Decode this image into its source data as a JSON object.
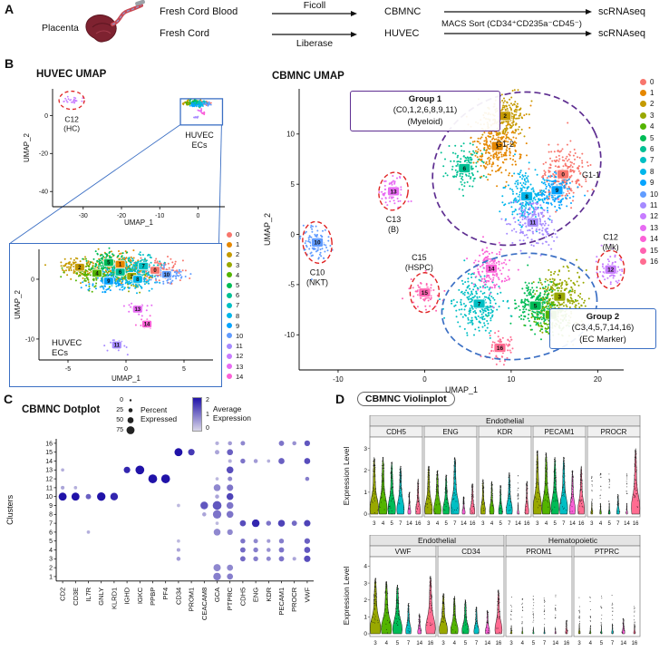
{
  "palette": [
    "#F8766D",
    "#E58700",
    "#C49A00",
    "#99A800",
    "#53B400",
    "#00BC56",
    "#00C094",
    "#00BFC4",
    "#00B6EB",
    "#06A4FF",
    "#619CFF",
    "#A58AFF",
    "#C77CFF",
    "#E76BF3",
    "#FB61D7",
    "#FF62B0",
    "#FF6C91"
  ],
  "panelA": {
    "label": "A",
    "placenta": "Placenta",
    "fresh_cord_blood": "Fresh Cord Blood",
    "fresh_cord": "Fresh Cord",
    "ficoll": "Ficoll",
    "liberase": "Liberase",
    "cbmnc": "CBMNC",
    "huvec": "HUVEC",
    "macs": "MACS Sort (CD34⁺CD235a⁻CD45⁻)",
    "scrnaseq1": "scRNAseq",
    "scrnaseq2": "scRNAseq"
  },
  "panelB": {
    "label": "B",
    "huvec_title": "HUVEC UMAP",
    "cbmnc_title": "CBMNC UMAP",
    "c12_hc": [
      "C12",
      "(HC)"
    ],
    "huvec_ecs": [
      "HUVEC",
      "ECs"
    ],
    "group1_box": [
      "Group 1",
      "(C0,1,2,6,8,9,11)",
      "(Myeloid)"
    ],
    "group2_box": [
      "Group 2",
      "(C3,4,5,7,14,16)",
      "(EC Marker)"
    ],
    "g12": "G1-2",
    "g11": "G1-1",
    "c13": [
      "C13",
      "(B)"
    ],
    "c10": [
      "C10",
      "(NKT)"
    ],
    "c15": [
      "C15",
      "(HSPC)"
    ],
    "c12mk": [
      "C12",
      "(Mk)"
    ]
  },
  "panelC": {
    "label": "C"
  },
  "panelD": {
    "label": "D"
  },
  "chart_data": {
    "huvec_umap": {
      "type": "scatter",
      "title": "HUVEC UMAP",
      "xlabel": "UMAP_1",
      "ylabel": "UMAP_2",
      "xlim": [
        -38,
        7
      ],
      "ylim": [
        -48,
        14
      ],
      "xticks": [
        -30,
        -20,
        -10,
        0
      ],
      "yticks": [
        0,
        -20,
        -40
      ],
      "clusters": [
        {
          "id": 0,
          "x": 1.75,
          "y": 6.5,
          "sd": 0.55,
          "n": 30
        },
        {
          "id": 1,
          "x": -0.35,
          "y": 7.1,
          "sd": 0.55,
          "n": 30
        },
        {
          "id": 2,
          "x": -2.8,
          "y": 6.8,
          "sd": 0.55,
          "n": 28
        },
        {
          "id": 3,
          "x": 0.35,
          "y": 5.9,
          "sd": 0.55,
          "n": 28
        },
        {
          "id": 4,
          "x": -1.75,
          "y": 6.2,
          "sd": 0.55,
          "n": 30
        },
        {
          "id": 5,
          "x": -1.05,
          "y": 7.28,
          "sd": 0.5,
          "n": 26
        },
        {
          "id": 6,
          "x": -0.35,
          "y": 6.32,
          "sd": 0.5,
          "n": 24
        },
        {
          "id": 7,
          "x": 1.05,
          "y": 6.92,
          "sd": 0.5,
          "n": 26
        },
        {
          "id": 8,
          "x": 0.7,
          "y": 5.6,
          "sd": 0.5,
          "n": 24
        },
        {
          "id": 9,
          "x": -1.05,
          "y": 5.42,
          "sd": 0.5,
          "n": 22
        },
        {
          "id": 10,
          "x": 2.45,
          "y": 6.08,
          "sd": 0.5,
          "n": 20
        },
        {
          "id": 11,
          "x": -0.56,
          "y": -1.0,
          "sd": 0.35,
          "n": 10
        },
        {
          "id": 13,
          "x": 0.7,
          "y": 2.6,
          "sd": 0.35,
          "n": 10
        },
        {
          "id": 14,
          "x": 1.26,
          "y": 1.1,
          "sd": 0.3,
          "n": 8
        },
        {
          "id": 12,
          "x": -33,
          "y": 8,
          "sd": 1.1,
          "n": 26
        }
      ]
    },
    "huvec_zoom": {
      "type": "scatter",
      "xlabel": "UMAP_1",
      "ylabel": "UMAP_2",
      "xlim": [
        -7.5,
        7.5
      ],
      "ylim": [
        -13.5,
        5
      ],
      "xticks": [
        -5,
        0,
        5
      ],
      "yticks": [
        0,
        -10
      ],
      "legend_ids": [
        0,
        1,
        2,
        3,
        4,
        5,
        6,
        7,
        8,
        9,
        10,
        11,
        12,
        13,
        14
      ],
      "clusters": [
        {
          "id": 0,
          "x": 2.5,
          "y": 1.5,
          "sd": 1.0,
          "n": 130
        },
        {
          "id": 1,
          "x": -0.5,
          "y": 2.5,
          "sd": 1.0,
          "n": 140
        },
        {
          "id": 2,
          "x": -4,
          "y": 2,
          "sd": 0.9,
          "n": 120
        },
        {
          "id": 3,
          "x": 0.5,
          "y": 0.5,
          "sd": 0.9,
          "n": 120
        },
        {
          "id": 4,
          "x": -2.5,
          "y": 1,
          "sd": 1.0,
          "n": 130
        },
        {
          "id": 5,
          "x": -1.5,
          "y": 2.8,
          "sd": 0.9,
          "n": 110
        },
        {
          "id": 6,
          "x": -0.5,
          "y": 1.2,
          "sd": 0.8,
          "n": 100
        },
        {
          "id": 7,
          "x": 1.5,
          "y": 2.2,
          "sd": 0.9,
          "n": 110
        },
        {
          "id": 8,
          "x": 1,
          "y": 0,
          "sd": 0.9,
          "n": 100
        },
        {
          "id": 9,
          "x": -1.5,
          "y": -0.3,
          "sd": 0.8,
          "n": 90
        },
        {
          "id": 10,
          "x": 3.5,
          "y": 0.8,
          "sd": 0.8,
          "n": 80
        },
        {
          "id": 11,
          "x": -0.8,
          "y": -11,
          "sd": 0.5,
          "n": 22
        },
        {
          "id": 13,
          "x": 1,
          "y": -5,
          "sd": 0.5,
          "n": 26
        },
        {
          "id": 14,
          "x": 1.8,
          "y": -7.5,
          "sd": 0.45,
          "n": 18
        }
      ]
    },
    "cbmnc_umap": {
      "type": "scatter",
      "title": "CBMNC UMAP",
      "xlabel": "UMAP_1",
      "ylabel": "UMAP_2",
      "xlim": [
        -14.5,
        23
      ],
      "ylim": [
        -13.5,
        14.5
      ],
      "xticks": [
        -10,
        0,
        10,
        20
      ],
      "yticks": [
        -10,
        -5,
        0,
        5,
        10
      ],
      "legend_ids": [
        0,
        1,
        2,
        3,
        4,
        5,
        6,
        7,
        8,
        9,
        10,
        11,
        12,
        13,
        14,
        15,
        16
      ],
      "clusters": [
        {
          "id": 0,
          "x": 16,
          "y": 6,
          "sd": 1.3,
          "n": 240
        },
        {
          "id": 1,
          "x": 8.4,
          "y": 8.8,
          "sd": 1.5,
          "n": 300
        },
        {
          "id": 2,
          "x": 9.3,
          "y": 11.8,
          "sd": 1.1,
          "n": 200
        },
        {
          "id": 3,
          "x": 15.6,
          "y": -6.2,
          "sd": 1.4,
          "n": 260
        },
        {
          "id": 4,
          "x": 14.6,
          "y": -8,
          "sd": 1.0,
          "n": 170
        },
        {
          "id": 5,
          "x": 12.8,
          "y": -7.1,
          "sd": 1.2,
          "n": 210
        },
        {
          "id": 6,
          "x": 4.6,
          "y": 6.6,
          "sd": 1.0,
          "n": 140
        },
        {
          "id": 7,
          "x": 6.3,
          "y": -6.9,
          "sd": 1.4,
          "n": 250
        },
        {
          "id": 8,
          "x": 11.8,
          "y": 3.8,
          "sd": 1.2,
          "n": 210
        },
        {
          "id": 9,
          "x": 15.3,
          "y": 4.4,
          "sd": 0.9,
          "n": 140
        },
        {
          "id": 10,
          "x": -12.4,
          "y": -0.8,
          "sd": 0.8,
          "n": 100
        },
        {
          "id": 11,
          "x": 12.5,
          "y": 1.2,
          "sd": 1.2,
          "n": 190
        },
        {
          "id": 12,
          "x": 21.5,
          "y": -3.5,
          "sd": 0.7,
          "n": 70
        },
        {
          "id": 13,
          "x": -3.6,
          "y": 4.3,
          "sd": 0.7,
          "n": 80
        },
        {
          "id": 14,
          "x": 7.7,
          "y": -3.4,
          "sd": 1.0,
          "n": 150
        },
        {
          "id": 15,
          "x": 0,
          "y": -5.8,
          "sd": 0.7,
          "n": 80
        },
        {
          "id": 16,
          "x": 8.7,
          "y": -11.3,
          "sd": 0.7,
          "n": 80
        }
      ]
    },
    "dotplot": {
      "type": "dotplot",
      "title": "CBMNC Dotplot",
      "ylabel": "Clusters",
      "clusters": [
        1,
        2,
        3,
        4,
        5,
        6,
        7,
        8,
        9,
        10,
        11,
        12,
        13,
        14,
        15,
        16
      ],
      "genes": [
        "CD2",
        "CD3E",
        "IL7R",
        "GNLY",
        "KLRD1",
        "IGHD",
        "IGKC",
        "PPBP",
        "PF4",
        "CD34",
        "PROM1",
        "CEACAM8",
        "GCA",
        "PTPRC",
        "CDH5",
        "ENG",
        "KDR",
        "PECAM1",
        "PROCR",
        "VWF"
      ],
      "legend_size_title": [
        "Percent",
        "Expressed"
      ],
      "legend_sizes": [
        0,
        25,
        50,
        75
      ],
      "legend_color_title": [
        "Average",
        "Expression"
      ],
      "legend_color_ticks": [
        2,
        1,
        0
      ],
      "dots": [
        [
          1,
          "GCA",
          70,
          0.9
        ],
        [
          1,
          "PTPRC",
          50,
          0.9
        ],
        [
          2,
          "GCA",
          65,
          0.8
        ],
        [
          2,
          "PTPRC",
          50,
          0.8
        ],
        [
          3,
          "CDH5",
          40,
          1.1
        ],
        [
          3,
          "ENG",
          35,
          0.9
        ],
        [
          3,
          "KDR",
          30,
          0.8
        ],
        [
          3,
          "PECAM1",
          40,
          1.0
        ],
        [
          3,
          "VWF",
          55,
          1.4
        ],
        [
          3,
          "CD34",
          25,
          0.6
        ],
        [
          3,
          "PROCR",
          20,
          0.5
        ],
        [
          4,
          "CDH5",
          40,
          1.1
        ],
        [
          4,
          "ENG",
          35,
          0.9
        ],
        [
          4,
          "KDR",
          25,
          0.7
        ],
        [
          4,
          "PECAM1",
          40,
          1.0
        ],
        [
          4,
          "VWF",
          50,
          1.3
        ],
        [
          4,
          "CD34",
          20,
          0.5
        ],
        [
          5,
          "CDH5",
          35,
          1.0
        ],
        [
          5,
          "ENG",
          30,
          0.8
        ],
        [
          5,
          "KDR",
          20,
          0.6
        ],
        [
          5,
          "PECAM1",
          35,
          0.9
        ],
        [
          5,
          "VWF",
          45,
          1.2
        ],
        [
          5,
          "CD34",
          15,
          0.3
        ],
        [
          6,
          "GCA",
          60,
          0.8
        ],
        [
          6,
          "PTPRC",
          45,
          0.8
        ],
        [
          6,
          "IL7R",
          15,
          0.4
        ],
        [
          7,
          "CDH5",
          50,
          1.4
        ],
        [
          7,
          "ENG",
          70,
          1.8
        ],
        [
          7,
          "KDR",
          35,
          1.0
        ],
        [
          7,
          "PECAM1",
          60,
          1.5
        ],
        [
          7,
          "PROCR",
          40,
          1.1
        ],
        [
          7,
          "VWF",
          55,
          1.5
        ],
        [
          7,
          "GCA",
          15,
          0.3
        ],
        [
          8,
          "GCA",
          80,
          1.0
        ],
        [
          8,
          "PTPRC",
          60,
          1.0
        ],
        [
          8,
          "CEACAM8",
          25,
          0.5
        ],
        [
          9,
          "CEACAM8",
          70,
          1.3
        ],
        [
          9,
          "GCA",
          85,
          1.3
        ],
        [
          9,
          "PTPRC",
          60,
          1.0
        ],
        [
          9,
          "CD34",
          15,
          0.3
        ],
        [
          10,
          "CD2",
          75,
          2
        ],
        [
          10,
          "CD3E",
          75,
          2
        ],
        [
          10,
          "IL7R",
          40,
          1.2
        ],
        [
          10,
          "GNLY",
          80,
          2
        ],
        [
          10,
          "KLRD1",
          70,
          1.8
        ],
        [
          10,
          "PTPRC",
          60,
          1.5
        ],
        [
          10,
          "GCA",
          25,
          0.5
        ],
        [
          11,
          "CD2",
          20,
          0.5
        ],
        [
          11,
          "CD3E",
          15,
          0.4
        ],
        [
          11,
          "GCA",
          60,
          0.8
        ],
        [
          11,
          "PTPRC",
          55,
          1.0
        ],
        [
          12,
          "PPBP",
          85,
          2
        ],
        [
          12,
          "PF4",
          85,
          2
        ],
        [
          12,
          "PTPRC",
          30,
          0.8
        ],
        [
          12,
          "VWF",
          25,
          0.9
        ],
        [
          12,
          "GCA",
          15,
          0.3
        ],
        [
          13,
          "IGHD",
          55,
          1.8
        ],
        [
          13,
          "IGKC",
          85,
          2
        ],
        [
          13,
          "PTPRC",
          60,
          1.4
        ],
        [
          13,
          "CD2",
          15,
          0.4
        ],
        [
          14,
          "CDH5",
          35,
          1.0
        ],
        [
          14,
          "ENG",
          25,
          0.6
        ],
        [
          14,
          "KDR",
          15,
          0.4
        ],
        [
          14,
          "PECAM1",
          50,
          1.2
        ],
        [
          14,
          "VWF",
          50,
          1.4
        ],
        [
          14,
          "PTPRC",
          20,
          0.4
        ],
        [
          15,
          "CD34",
          75,
          2
        ],
        [
          15,
          "PROM1",
          55,
          1.6
        ],
        [
          15,
          "GCA",
          30,
          0.5
        ],
        [
          15,
          "PTPRC",
          50,
          1.2
        ],
        [
          16,
          "CDH5",
          30,
          0.8
        ],
        [
          16,
          "PECAM1",
          40,
          1.0
        ],
        [
          16,
          "PROCR",
          25,
          0.7
        ],
        [
          16,
          "VWF",
          45,
          1.3
        ],
        [
          16,
          "GCA",
          20,
          0.4
        ],
        [
          16,
          "PTPRC",
          25,
          0.6
        ]
      ]
    },
    "violin": {
      "type": "violin",
      "title": "CBMNC Violinplot",
      "ylabel": "Expression Level",
      "categories": [
        3,
        4,
        5,
        7,
        14,
        16
      ],
      "rows": [
        {
          "yticks": [
            0,
            1,
            2,
            3
          ],
          "groups": [
            {
              "label": "Endothelial",
              "span": 5
            }
          ],
          "plots": [
            {
              "gene": "CDH5",
              "max": [
                2.6,
                2.6,
                2.4,
                2.2,
                1.0,
                1.6
              ],
              "w": [
                0.9,
                0.88,
                0.8,
                0.78,
                0.3,
                0.5
              ]
            },
            {
              "gene": "ENG",
              "max": [
                2.2,
                2.0,
                1.8,
                2.6,
                0.8,
                1.4
              ],
              "w": [
                0.8,
                0.78,
                0.7,
                0.9,
                0.3,
                0.5
              ]
            },
            {
              "gene": "KDR",
              "max": [
                1.6,
                1.5,
                1.3,
                1.9,
                0.5,
                1.5
              ],
              "w": [
                0.5,
                0.48,
                0.42,
                0.65,
                0.18,
                0.4
              ]
            },
            {
              "gene": "PECAM1",
              "max": [
                2.9,
                2.8,
                2.6,
                2.6,
                2.0,
                2.2
              ],
              "w": [
                0.9,
                0.88,
                0.84,
                0.84,
                0.6,
                0.7
              ]
            },
            {
              "gene": "PROCR",
              "max": [
                0.6,
                0.5,
                0.5,
                0.9,
                0.5,
                3.0
              ],
              "w": [
                0.2,
                0.18,
                0.18,
                0.3,
                0.16,
                0.9
              ]
            }
          ]
        },
        {
          "yticks": [
            0,
            1,
            2,
            3,
            4
          ],
          "groups": [
            {
              "label": "Endothelial",
              "span": 2
            },
            {
              "label": "Hematopoietic",
              "span": 2
            }
          ],
          "plots": [
            {
              "gene": "VWF",
              "max": [
                3.3,
                3.1,
                2.9,
                1.8,
                1.2,
                3.4
              ],
              "w": [
                0.9,
                0.88,
                0.8,
                0.45,
                0.3,
                0.8
              ]
            },
            {
              "gene": "CD34",
              "max": [
                2.4,
                2.2,
                2.0,
                1.6,
                1.4,
                2.6
              ],
              "w": [
                0.7,
                0.62,
                0.58,
                0.42,
                0.36,
                0.6
              ]
            },
            {
              "gene": "PROM1",
              "max": [
                0.5,
                0.4,
                0.4,
                0.4,
                0.4,
                0.8
              ],
              "w": [
                0.12,
                0.1,
                0.1,
                0.1,
                0.1,
                0.16
              ]
            },
            {
              "gene": "PTPRC",
              "max": [
                0.6,
                0.5,
                0.5,
                0.6,
                0.9,
                0.6
              ],
              "w": [
                0.14,
                0.1,
                0.1,
                0.14,
                0.22,
                0.14
              ]
            }
          ]
        }
      ]
    }
  }
}
